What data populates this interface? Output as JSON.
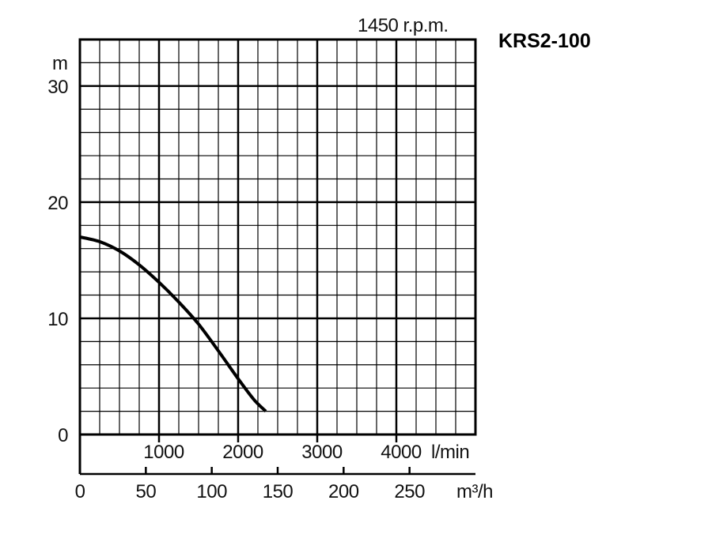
{
  "chart_data": {
    "type": "line",
    "model": "KRS2-100",
    "speed": "1450 r.p.m.",
    "ylabel": "m",
    "ylim": [
      0,
      34
    ],
    "y_ticks": [
      "0",
      "10",
      "20",
      "30"
    ],
    "x_flow_lpm": {
      "xlim": [
        0,
        5000
      ],
      "ticks": [
        "1000",
        "2000",
        "3000",
        "4000"
      ],
      "unit": "l/min"
    },
    "x_flow_m3h": {
      "xlim": [
        0,
        300
      ],
      "ticks": [
        "0",
        "50",
        "100",
        "150",
        "200",
        "250"
      ],
      "unit": "m³/h"
    },
    "grid": true,
    "series": [
      {
        "x_lpm": [
          0,
          250,
          500,
          750,
          1000,
          1250,
          1500,
          1750,
          2000,
          2200,
          2350
        ],
        "head_m": [
          17,
          16.6,
          15.8,
          14.6,
          13.1,
          11.4,
          9.5,
          7.2,
          4.8,
          3.0,
          2.0
        ]
      }
    ]
  }
}
